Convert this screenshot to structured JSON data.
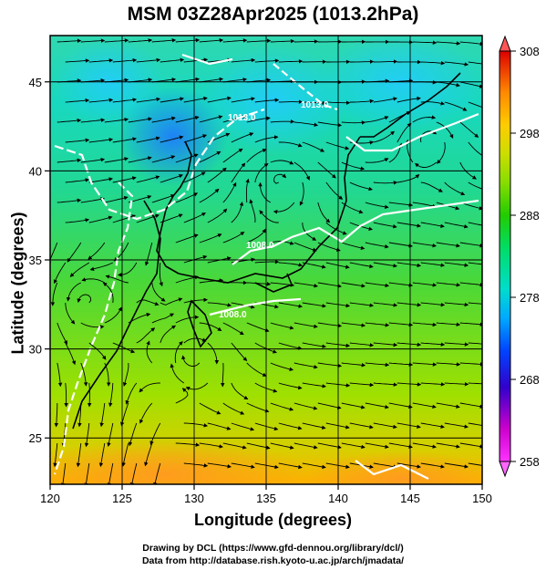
{
  "title": "MSM 03Z28Apr2025 (1013.2hPa)",
  "xlabel": "Longitude (degrees)",
  "ylabel": "Latitude  (degrees)",
  "credit_line1": "Drawing by DCL (https://www.gfd-dennou.org/library/dcl/)",
  "credit_line2": "Data from http://database.rish.kyoto-u.ac.jp/arch/jmadata/",
  "map_extent": {
    "lon_min": 120,
    "lon_max": 150,
    "lat_min": 22.4,
    "lat_max": 47.6
  },
  "x_ticks": [
    "120",
    "125",
    "130",
    "135",
    "140",
    "145",
    "150"
  ],
  "y_ticks": [
    "25",
    "30",
    "35",
    "40",
    "45"
  ],
  "colorbar": {
    "min": 258,
    "max": 308,
    "ticks": [
      "308",
      "298",
      "288",
      "278",
      "268",
      "258"
    ],
    "colors": [
      "#ff33ff",
      "#cc00cc",
      "#3300cc",
      "#0044ff",
      "#00aaff",
      "#00ddcc",
      "#00dd66",
      "#22cc00",
      "#88dd00",
      "#ccdd00",
      "#ffcc00",
      "#ff8800",
      "#ff3300",
      "#dd0000"
    ]
  },
  "contour_labels": [
    "1013.0",
    "1013.0",
    "1008.0",
    "1008.0"
  ],
  "accent": {
    "contour": "#ffffff",
    "coast": "#000000",
    "streamline": "#000000"
  }
}
